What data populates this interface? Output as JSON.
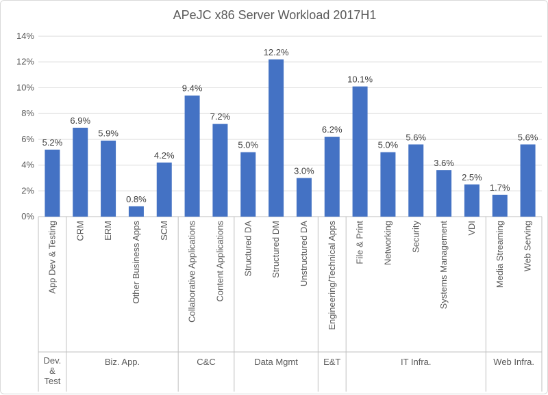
{
  "chart_data": {
    "type": "bar",
    "title": "APeJC x86 Server Workload 2017H1",
    "xlabel": "",
    "ylabel": "",
    "ylim": [
      0,
      14
    ],
    "yticks": [
      "0%",
      "2%",
      "4%",
      "6%",
      "8%",
      "10%",
      "12%",
      "14%"
    ],
    "grid": true,
    "bar_color": "#4472c4",
    "categories": [
      "App Dev & Testing",
      "CRM",
      "ERM",
      "Other Business Apps",
      "SCM",
      "Collaborative Applications",
      "Content Applications",
      "Structured DA",
      "Structured DM",
      "Unstructured DA",
      "Engineering/Technical Apps",
      "File & Print",
      "Networking",
      "Security",
      "Systems Management",
      "VDI",
      "Media Streaming",
      "Web Serving"
    ],
    "values": [
      5.2,
      6.9,
      5.9,
      0.8,
      4.2,
      9.4,
      7.2,
      5.0,
      12.2,
      3.0,
      6.2,
      10.1,
      5.0,
      5.6,
      3.6,
      2.5,
      1.7,
      5.6
    ],
    "value_labels": [
      "5.2%",
      "6.9%",
      "5.9%",
      "0.8%",
      "4.2%",
      "9.4%",
      "7.2%",
      "5.0%",
      "12.2%",
      "3.0%",
      "6.2%",
      "10.1%",
      "5.0%",
      "5.6%",
      "3.6%",
      "2.5%",
      "1.7%",
      "5.6%"
    ],
    "groups": [
      {
        "label": "Dev. & Test",
        "lines": [
          "Dev.",
          "&",
          "Test"
        ],
        "start": 0,
        "end": 0
      },
      {
        "label": "Biz. App.",
        "lines": [
          "Biz. App."
        ],
        "start": 1,
        "end": 4
      },
      {
        "label": "C&C",
        "lines": [
          "C&C"
        ],
        "start": 5,
        "end": 6
      },
      {
        "label": "Data Mgmt",
        "lines": [
          "Data Mgmt"
        ],
        "start": 7,
        "end": 9
      },
      {
        "label": "E&T",
        "lines": [
          "E&T"
        ],
        "start": 10,
        "end": 10
      },
      {
        "label": "IT Infra.",
        "lines": [
          "IT Infra."
        ],
        "start": 11,
        "end": 15
      },
      {
        "label": "Web Infra.",
        "lines": [
          "Web Infra."
        ],
        "start": 16,
        "end": 17
      }
    ]
  }
}
